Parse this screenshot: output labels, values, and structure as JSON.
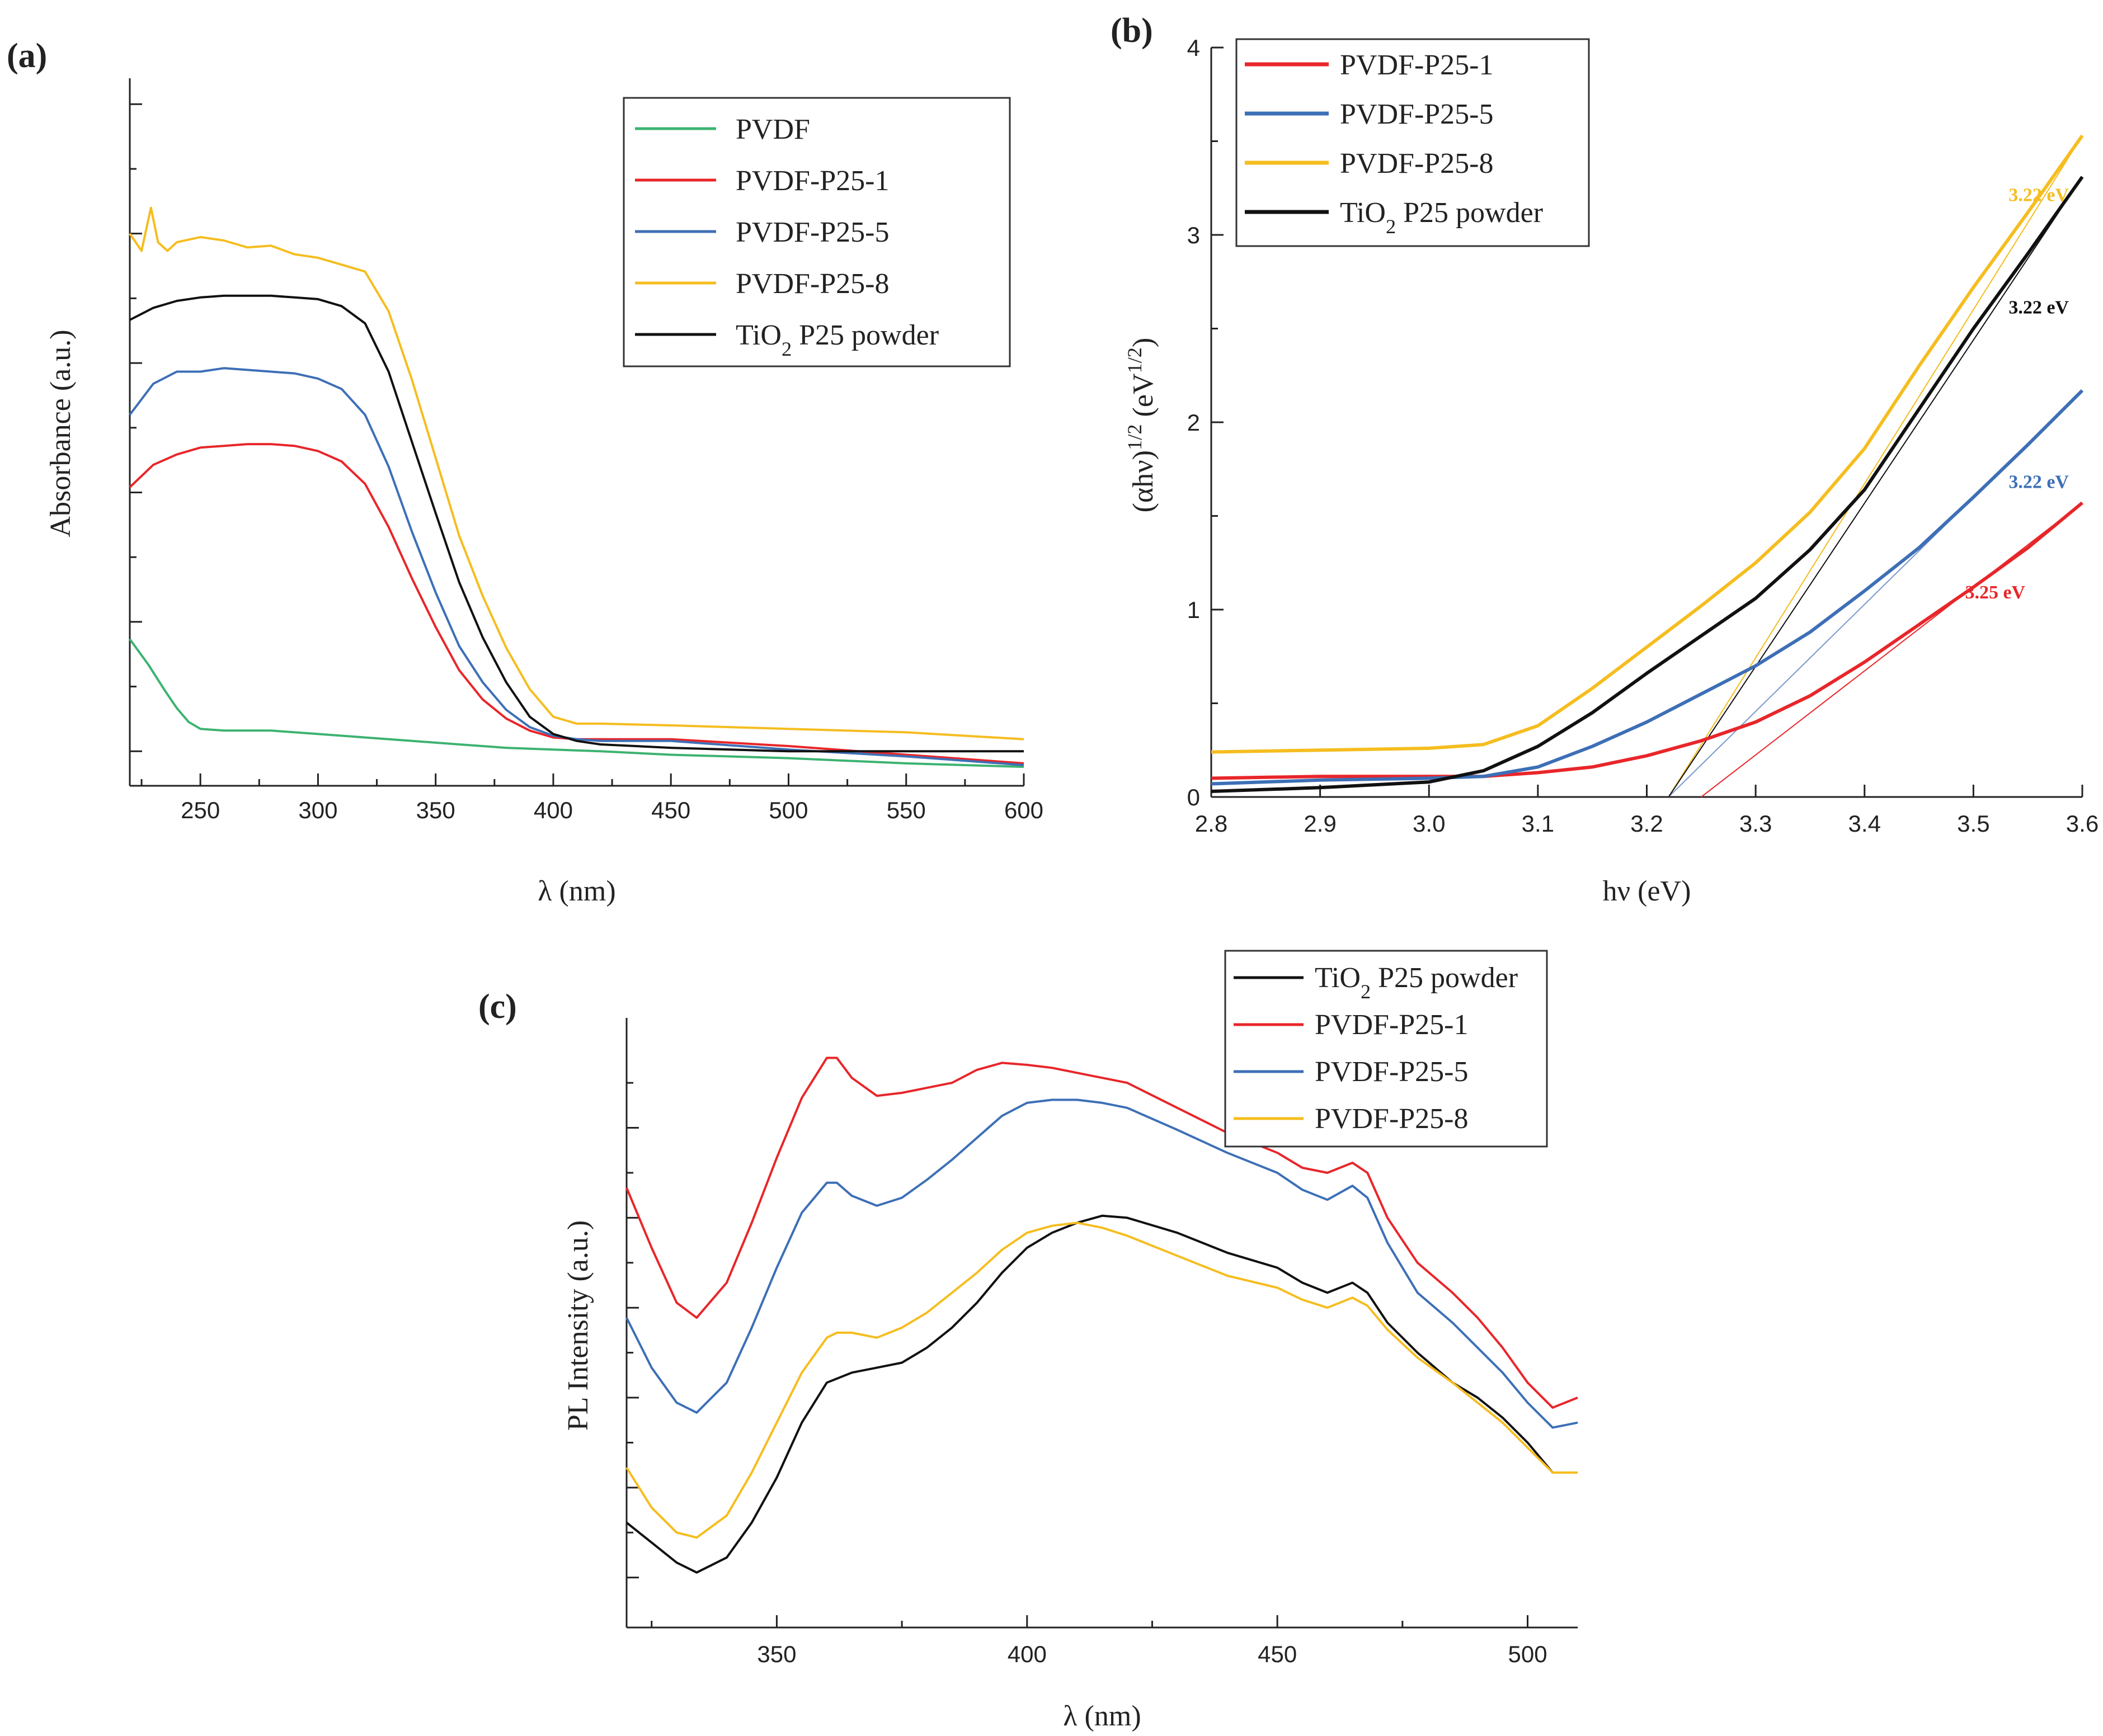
{
  "chart_data": [
    {
      "panel": "(a)",
      "type": "line",
      "xlabel": "λ (nm)",
      "ylabel": "Absorbance (a.u.)",
      "xlim": [
        220,
        600
      ],
      "ylim": [
        -0.2,
        3.9
      ],
      "x_ticks": [
        250,
        300,
        350,
        400,
        450,
        500,
        550,
        600
      ],
      "legend_position": "top-right",
      "series": [
        {
          "name": "PVDF",
          "color": "#3cb371",
          "x": [
            220,
            228,
            235,
            240,
            245,
            250,
            260,
            280,
            300,
            320,
            340,
            360,
            380,
            400,
            420,
            450,
            500,
            550,
            600
          ],
          "y": [
            0.65,
            0.5,
            0.35,
            0.25,
            0.17,
            0.13,
            0.12,
            0.12,
            0.1,
            0.08,
            0.06,
            0.04,
            0.02,
            0.01,
            0.0,
            -0.02,
            -0.04,
            -0.07,
            -0.09
          ]
        },
        {
          "name": "PVDF-P25-1",
          "color": "#e8262a",
          "x": [
            220,
            230,
            240,
            250,
            260,
            270,
            280,
            290,
            300,
            310,
            320,
            330,
            340,
            350,
            360,
            370,
            380,
            390,
            400,
            410,
            420,
            450,
            500,
            550,
            600
          ],
          "y": [
            1.53,
            1.66,
            1.72,
            1.76,
            1.77,
            1.78,
            1.78,
            1.77,
            1.74,
            1.68,
            1.55,
            1.3,
            1.0,
            0.72,
            0.47,
            0.3,
            0.19,
            0.12,
            0.08,
            0.07,
            0.07,
            0.07,
            0.03,
            -0.02,
            -0.07
          ]
        },
        {
          "name": "PVDF-P25-5",
          "color": "#3d6fb6",
          "x": [
            220,
            230,
            240,
            250,
            260,
            270,
            280,
            290,
            300,
            310,
            320,
            330,
            340,
            350,
            360,
            370,
            380,
            390,
            400,
            410,
            420,
            450,
            500,
            550,
            600
          ],
          "y": [
            1.95,
            2.13,
            2.2,
            2.2,
            2.22,
            2.21,
            2.2,
            2.19,
            2.16,
            2.1,
            1.95,
            1.65,
            1.27,
            0.92,
            0.61,
            0.4,
            0.24,
            0.14,
            0.09,
            0.07,
            0.06,
            0.06,
            0.01,
            -0.03,
            -0.08
          ]
        },
        {
          "name": "PVDF-P25-8",
          "color": "#f5bd1f",
          "x": [
            220,
            225,
            229,
            232,
            236,
            240,
            250,
            260,
            270,
            280,
            290,
            300,
            310,
            320,
            330,
            340,
            350,
            360,
            370,
            380,
            390,
            400,
            410,
            420,
            450,
            500,
            550,
            600
          ],
          "y": [
            3.0,
            2.9,
            3.15,
            2.95,
            2.9,
            2.95,
            2.98,
            2.96,
            2.92,
            2.93,
            2.88,
            2.86,
            2.82,
            2.78,
            2.55,
            2.15,
            1.7,
            1.25,
            0.9,
            0.6,
            0.36,
            0.2,
            0.16,
            0.16,
            0.15,
            0.13,
            0.11,
            0.07
          ]
        },
        {
          "name": "TiO₂ P25 powder",
          "color": "#111111",
          "x": [
            220,
            230,
            240,
            250,
            260,
            270,
            280,
            290,
            300,
            310,
            320,
            330,
            340,
            350,
            360,
            370,
            380,
            390,
            400,
            410,
            420,
            450,
            500,
            550,
            600
          ],
          "y": [
            2.5,
            2.57,
            2.61,
            2.63,
            2.64,
            2.64,
            2.64,
            2.63,
            2.62,
            2.58,
            2.48,
            2.2,
            1.79,
            1.38,
            0.98,
            0.66,
            0.4,
            0.2,
            0.1,
            0.06,
            0.04,
            0.02,
            0.0,
            0.0,
            0.0
          ]
        }
      ]
    },
    {
      "panel": "(b)",
      "type": "line",
      "xlabel": "hν (eV)",
      "ylabel_main": "(αhν)",
      "ylabel_sup1": "1/2",
      "ylabel_mid": " (eV",
      "ylabel_sup2": "1/2",
      "ylabel_end": ")",
      "xlim": [
        2.8,
        3.6
      ],
      "ylim": [
        0,
        4
      ],
      "x_ticks": [
        "2.8",
        "2.9",
        "3.0",
        "3.1",
        "3.2",
        "3.3",
        "3.4",
        "3.5",
        "3.6"
      ],
      "y_ticks": [
        "0",
        "1",
        "2",
        "3",
        "4"
      ],
      "legend_position": "top-left",
      "series": [
        {
          "name": "PVDF-P25-1",
          "color": "#e8262a",
          "x": [
            2.8,
            2.9,
            3.0,
            3.05,
            3.1,
            3.15,
            3.2,
            3.25,
            3.3,
            3.35,
            3.4,
            3.45,
            3.5,
            3.55,
            3.6
          ],
          "y": [
            0.1,
            0.11,
            0.11,
            0.11,
            0.13,
            0.16,
            0.22,
            0.3,
            0.4,
            0.54,
            0.72,
            0.92,
            1.12,
            1.33,
            1.57
          ]
        },
        {
          "name": "PVDF-P25-5",
          "color": "#3d6fb6",
          "x": [
            2.8,
            2.9,
            3.0,
            3.05,
            3.1,
            3.15,
            3.2,
            3.25,
            3.3,
            3.35,
            3.4,
            3.45,
            3.5,
            3.55,
            3.6
          ],
          "y": [
            0.07,
            0.09,
            0.1,
            0.11,
            0.16,
            0.27,
            0.4,
            0.55,
            0.7,
            0.88,
            1.1,
            1.33,
            1.6,
            1.88,
            2.17
          ]
        },
        {
          "name": "PVDF-P25-8",
          "color": "#f5bd1f",
          "x": [
            2.8,
            2.9,
            3.0,
            3.05,
            3.1,
            3.15,
            3.2,
            3.25,
            3.3,
            3.35,
            3.4,
            3.45,
            3.5,
            3.55,
            3.6
          ],
          "y": [
            0.24,
            0.25,
            0.26,
            0.28,
            0.38,
            0.58,
            0.8,
            1.02,
            1.25,
            1.52,
            1.86,
            2.3,
            2.72,
            3.12,
            3.53
          ]
        },
        {
          "name": "TiO₂ P25 powder",
          "color": "#111111",
          "x": [
            2.8,
            2.9,
            3.0,
            3.05,
            3.1,
            3.15,
            3.2,
            3.25,
            3.3,
            3.35,
            3.4,
            3.45,
            3.5,
            3.55,
            3.6
          ],
          "y": [
            0.03,
            0.05,
            0.08,
            0.14,
            0.27,
            0.45,
            0.66,
            0.86,
            1.06,
            1.32,
            1.64,
            2.07,
            2.5,
            2.9,
            3.31
          ]
        }
      ],
      "tangent_lines": [
        {
          "series": "PVDF-P25-1",
          "color": "#e8262a",
          "x0": 3.25,
          "y0": 0,
          "x1": 3.6,
          "y1": 1.57
        },
        {
          "series": "PVDF-P25-5",
          "color": "#7a99cc",
          "x0": 3.22,
          "y0": 0,
          "x1": 3.6,
          "y1": 2.17
        },
        {
          "series": "PVDF-P25-8",
          "color": "#f5bd1f",
          "x0": 3.22,
          "y0": 0,
          "x1": 3.6,
          "y1": 3.53
        },
        {
          "series": "TiO₂ P25 powder",
          "color": "#111111",
          "x0": 3.22,
          "y0": 0,
          "x1": 3.6,
          "y1": 3.31
        }
      ],
      "annotations": [
        {
          "text": "3.22 eV",
          "color": "#f5bd1f",
          "x": 3.56,
          "y": 3.18
        },
        {
          "text": "3.22 eV",
          "color": "#111111",
          "x": 3.56,
          "y": 2.58
        },
        {
          "text": "3.22 eV",
          "color": "#3d6fb6",
          "x": 3.56,
          "y": 1.65
        },
        {
          "text": "3.25 eV",
          "color": "#e8262a",
          "x": 3.52,
          "y": 1.06
        }
      ]
    },
    {
      "panel": "(c)",
      "type": "line",
      "xlabel": "λ (nm)",
      "ylabel": "PL Intensity (a.u.)",
      "xlim": [
        320,
        510
      ],
      "ylim": [
        -0.5,
        5.6
      ],
      "x_ticks": [
        350,
        400,
        450,
        500
      ],
      "legend_position": "top-right",
      "series": [
        {
          "name": "TiO₂ P25 powder",
          "color": "#111111",
          "x": [
            320,
            325,
            330,
            334,
            340,
            345,
            350,
            355,
            360,
            365,
            370,
            375,
            380,
            385,
            390,
            395,
            400,
            405,
            410,
            415,
            420,
            430,
            440,
            450,
            455,
            460,
            465,
            468,
            472,
            478,
            485,
            490,
            495,
            500,
            505,
            510
          ],
          "y": [
            0.55,
            0.35,
            0.15,
            0.05,
            0.2,
            0.55,
            1.0,
            1.55,
            1.95,
            2.05,
            2.1,
            2.15,
            2.3,
            2.5,
            2.75,
            3.05,
            3.3,
            3.45,
            3.55,
            3.62,
            3.6,
            3.45,
            3.25,
            3.1,
            2.95,
            2.85,
            2.95,
            2.85,
            2.55,
            2.25,
            1.95,
            1.8,
            1.6,
            1.35,
            1.05,
            1.05
          ]
        },
        {
          "name": "PVDF-P25-1",
          "color": "#e8262a",
          "x": [
            320,
            325,
            330,
            334,
            340,
            345,
            350,
            355,
            360,
            362,
            365,
            370,
            375,
            380,
            385,
            390,
            395,
            400,
            405,
            410,
            415,
            420,
            430,
            440,
            450,
            455,
            460,
            465,
            468,
            472,
            478,
            485,
            490,
            495,
            500,
            505,
            510
          ],
          "y": [
            3.9,
            3.3,
            2.75,
            2.6,
            2.95,
            3.55,
            4.2,
            4.8,
            5.2,
            5.2,
            5.0,
            4.82,
            4.85,
            4.9,
            4.95,
            5.08,
            5.15,
            5.13,
            5.1,
            5.05,
            5.0,
            4.95,
            4.7,
            4.45,
            4.25,
            4.1,
            4.05,
            4.15,
            4.05,
            3.6,
            3.15,
            2.85,
            2.6,
            2.3,
            1.95,
            1.7,
            1.8
          ]
        },
        {
          "name": "PVDF-P25-5",
          "color": "#3d6fb6",
          "x": [
            320,
            325,
            330,
            334,
            340,
            345,
            350,
            355,
            360,
            362,
            365,
            370,
            375,
            380,
            385,
            390,
            395,
            400,
            405,
            410,
            415,
            420,
            430,
            440,
            450,
            455,
            460,
            465,
            468,
            472,
            478,
            485,
            490,
            495,
            500,
            505,
            510
          ],
          "y": [
            2.6,
            2.1,
            1.75,
            1.65,
            1.95,
            2.5,
            3.1,
            3.65,
            3.95,
            3.95,
            3.82,
            3.72,
            3.8,
            3.98,
            4.18,
            4.4,
            4.62,
            4.75,
            4.78,
            4.78,
            4.75,
            4.7,
            4.48,
            4.25,
            4.05,
            3.88,
            3.78,
            3.92,
            3.8,
            3.35,
            2.85,
            2.55,
            2.3,
            2.05,
            1.75,
            1.5,
            1.55
          ]
        },
        {
          "name": "PVDF-P25-8",
          "color": "#f5bd1f",
          "x": [
            320,
            325,
            330,
            334,
            340,
            345,
            350,
            355,
            360,
            362,
            365,
            370,
            375,
            380,
            385,
            390,
            395,
            400,
            405,
            410,
            415,
            420,
            430,
            440,
            450,
            455,
            460,
            465,
            468,
            472,
            478,
            485,
            490,
            495,
            500,
            505,
            510
          ],
          "y": [
            1.1,
            0.7,
            0.45,
            0.4,
            0.62,
            1.05,
            1.55,
            2.05,
            2.4,
            2.45,
            2.45,
            2.4,
            2.5,
            2.65,
            2.85,
            3.05,
            3.28,
            3.45,
            3.52,
            3.55,
            3.5,
            3.42,
            3.22,
            3.02,
            2.9,
            2.78,
            2.7,
            2.8,
            2.72,
            2.48,
            2.2,
            1.95,
            1.75,
            1.55,
            1.3,
            1.05,
            1.05
          ]
        }
      ]
    }
  ]
}
